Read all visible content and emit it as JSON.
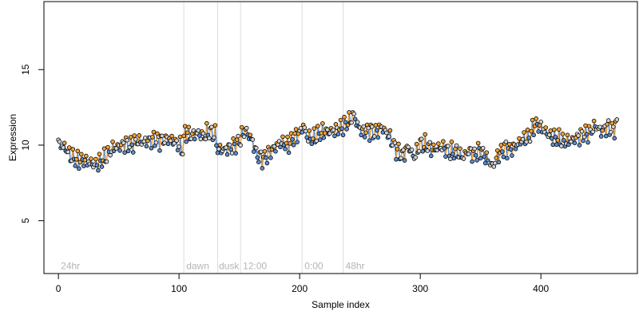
{
  "chart_data": {
    "type": "scatter",
    "xlabel": "Sample index",
    "ylabel": "Expression",
    "xlim": [
      -12,
      480
    ],
    "ylim": [
      1.5,
      19.5
    ],
    "x_ticks": [
      0,
      100,
      200,
      300,
      400
    ],
    "y_ticks": [
      5,
      10,
      15
    ],
    "grid": false,
    "vlines": [
      104,
      132,
      151,
      202,
      236
    ],
    "annotations": [
      "24hr",
      "dawn",
      "dusk",
      "12:00",
      "0:00",
      "48hr"
    ],
    "annotation_x": [
      2,
      106,
      133,
      153,
      204,
      238
    ],
    "annotation_y": 2.0,
    "colors": {
      "points_stroke": "#000000",
      "point_fill": "#d3d3d3",
      "high_fill": "#f2a23a",
      "low_fill": "#5b8fd6",
      "line": "#a9a9a9",
      "vline": "#dcdcdc",
      "annotation": "#b4b4b4"
    },
    "knots": [
      [
        0,
        10.1
      ],
      [
        6,
        9.8
      ],
      [
        10,
        9.3
      ],
      [
        15,
        9.0
      ],
      [
        20,
        9.0
      ],
      [
        25,
        8.9
      ],
      [
        30,
        8.7
      ],
      [
        35,
        8.9
      ],
      [
        40,
        9.3
      ],
      [
        45,
        9.8
      ],
      [
        50,
        9.9
      ],
      [
        55,
        10.1
      ],
      [
        60,
        10.0
      ],
      [
        65,
        10.3
      ],
      [
        70,
        10.2
      ],
      [
        75,
        10.3
      ],
      [
        80,
        10.4
      ],
      [
        85,
        10.3
      ],
      [
        90,
        10.4
      ],
      [
        95,
        10.3
      ],
      [
        100,
        10.0
      ],
      [
        103,
        9.7
      ],
      [
        105,
        10.9
      ],
      [
        110,
        10.6
      ],
      [
        115,
        10.8
      ],
      [
        120,
        10.6
      ],
      [
        125,
        10.9
      ],
      [
        130,
        10.7
      ],
      [
        132,
        9.7
      ],
      [
        137,
        9.7
      ],
      [
        145,
        9.9
      ],
      [
        150,
        10.3
      ],
      [
        155,
        11.0
      ],
      [
        160,
        10.4
      ],
      [
        165,
        9.3
      ],
      [
        170,
        9.1
      ],
      [
        175,
        9.5
      ],
      [
        180,
        9.9
      ],
      [
        185,
        10.2
      ],
      [
        190,
        10.0
      ],
      [
        195,
        10.5
      ],
      [
        200,
        10.8
      ],
      [
        203,
        11.3
      ],
      [
        206,
        10.6
      ],
      [
        210,
        10.4
      ],
      [
        215,
        10.7
      ],
      [
        220,
        10.9
      ],
      [
        225,
        10.9
      ],
      [
        230,
        11.0
      ],
      [
        235,
        11.2
      ],
      [
        240,
        11.5
      ],
      [
        245,
        12.0
      ],
      [
        248,
        11.3
      ],
      [
        252,
        10.9
      ],
      [
        258,
        11.0
      ],
      [
        262,
        10.8
      ],
      [
        268,
        11.2
      ],
      [
        275,
        10.5
      ],
      [
        280,
        9.7
      ],
      [
        285,
        9.3
      ],
      [
        290,
        9.9
      ],
      [
        295,
        9.2
      ],
      [
        300,
        10.1
      ],
      [
        305,
        10.0
      ],
      [
        310,
        9.7
      ],
      [
        318,
        9.9
      ],
      [
        325,
        9.5
      ],
      [
        330,
        9.6
      ],
      [
        335,
        9.2
      ],
      [
        340,
        9.6
      ],
      [
        345,
        9.4
      ],
      [
        350,
        9.7
      ],
      [
        355,
        9.1
      ],
      [
        360,
        8.6
      ],
      [
        365,
        9.4
      ],
      [
        370,
        9.8
      ],
      [
        375,
        9.7
      ],
      [
        380,
        10.0
      ],
      [
        385,
        10.4
      ],
      [
        390,
        10.5
      ],
      [
        395,
        11.4
      ],
      [
        400,
        11.2
      ],
      [
        405,
        10.8
      ],
      [
        410,
        10.5
      ],
      [
        415,
        10.4
      ],
      [
        420,
        10.2
      ],
      [
        425,
        10.3
      ],
      [
        430,
        10.5
      ],
      [
        435,
        10.7
      ],
      [
        440,
        10.8
      ],
      [
        445,
        11.3
      ],
      [
        450,
        10.9
      ],
      [
        455,
        11.2
      ],
      [
        460,
        11.0
      ],
      [
        463,
        11.4
      ]
    ],
    "n_points": 464
  }
}
